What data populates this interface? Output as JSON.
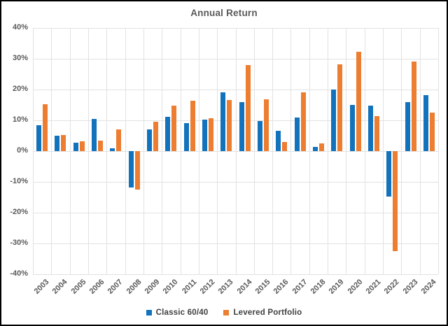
{
  "title": "Annual Return",
  "colors": {
    "classic_6040": "#1272BB",
    "levered_portfolio": "#ED7D31",
    "gridline": "#e2e2e2",
    "axis_text": "#595959"
  },
  "legend": {
    "items": [
      {
        "label": "Classic 60/40",
        "color": "#1272BB"
      },
      {
        "label": "Levered Portfolio",
        "color": "#ED7D31"
      }
    ]
  },
  "chart_data": {
    "type": "bar",
    "title": "Annual Return",
    "categories": [
      "2003",
      "2004",
      "2005",
      "2006",
      "2007",
      "2008",
      "2009",
      "2010",
      "2011",
      "2012",
      "2013",
      "2014",
      "2015",
      "2016",
      "2017",
      "2018",
      "2019",
      "2020",
      "2021",
      "2022",
      "2023",
      "2024"
    ],
    "series": [
      {
        "name": "Classic 60/40",
        "color": "#1272BB",
        "values": [
          8.5,
          4.9,
          2.7,
          10.5,
          1.0,
          -11.9,
          7.0,
          11.2,
          9.0,
          10.3,
          19.0,
          16.0,
          9.7,
          6.5,
          10.8,
          1.4,
          19.9,
          15.0,
          14.7,
          -14.7,
          16.0,
          18.1
        ]
      },
      {
        "name": "Levered Portfolio",
        "color": "#ED7D31",
        "values": [
          15.3,
          5.2,
          3.2,
          3.5,
          7.0,
          -12.4,
          9.6,
          14.8,
          16.4,
          10.7,
          16.6,
          28.0,
          16.8,
          2.9,
          19.0,
          2.4,
          28.1,
          32.2,
          11.4,
          -32.6,
          29.1,
          12.6
        ]
      }
    ],
    "xlabel": "",
    "ylabel": "",
    "ylim": [
      -40,
      40
    ],
    "ytick_step": 10,
    "ytick_labels": [
      "40%",
      "30%",
      "20%",
      "10%",
      "0%",
      "-10%",
      "-20%",
      "-30%",
      "-40%"
    ],
    "grid": true,
    "legend_position": "bottom"
  }
}
